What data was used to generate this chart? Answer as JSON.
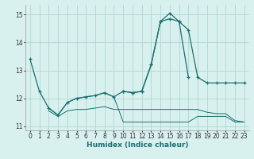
{
  "xlabel": "Humidex (Indice chaleur)",
  "background_color": "#d8f0ee",
  "grid_color": "#aed8d4",
  "line_color": "#1a7070",
  "xlim": [
    -0.5,
    23.5
  ],
  "ylim": [
    10.85,
    15.35
  ],
  "yticks": [
    11,
    12,
    13,
    14,
    15
  ],
  "xticks": [
    0,
    1,
    2,
    3,
    4,
    5,
    6,
    7,
    8,
    9,
    10,
    11,
    12,
    13,
    14,
    15,
    16,
    17,
    18,
    19,
    20,
    21,
    22,
    23
  ],
  "series_with_markers": [
    [
      0,
      13.4
    ],
    [
      1,
      12.25
    ],
    [
      2,
      11.65
    ],
    [
      3,
      11.4
    ],
    [
      4,
      11.85
    ],
    [
      5,
      12.0
    ],
    [
      6,
      12.05
    ],
    [
      7,
      12.1
    ],
    [
      8,
      12.2
    ],
    [
      9,
      12.05
    ],
    [
      10,
      12.25
    ],
    [
      11,
      12.2
    ],
    [
      12,
      12.25
    ],
    [
      13,
      13.2
    ],
    [
      14,
      14.75
    ],
    [
      15,
      14.85
    ],
    [
      16,
      14.75
    ],
    [
      17,
      14.45
    ],
    [
      18,
      12.75
    ],
    [
      19,
      12.55
    ],
    [
      20,
      12.55
    ],
    [
      21,
      12.55
    ],
    [
      22,
      12.55
    ],
    [
      23,
      12.55
    ]
  ],
  "series_peak": [
    [
      10,
      12.25
    ],
    [
      11,
      12.2
    ],
    [
      12,
      12.25
    ],
    [
      13,
      13.2
    ],
    [
      14,
      14.75
    ],
    [
      15,
      15.05
    ],
    [
      16,
      14.75
    ],
    [
      17,
      12.75
    ]
  ],
  "series_flat1": [
    [
      2,
      11.65
    ],
    [
      3,
      11.4
    ],
    [
      4,
      11.85
    ],
    [
      5,
      12.0
    ],
    [
      6,
      12.05
    ],
    [
      7,
      12.1
    ],
    [
      8,
      12.2
    ],
    [
      9,
      12.05
    ],
    [
      10,
      11.15
    ],
    [
      11,
      11.15
    ],
    [
      12,
      11.15
    ],
    [
      13,
      11.15
    ],
    [
      14,
      11.15
    ],
    [
      15,
      11.15
    ],
    [
      16,
      11.15
    ],
    [
      17,
      11.15
    ],
    [
      18,
      11.35
    ],
    [
      19,
      11.35
    ],
    [
      20,
      11.35
    ],
    [
      21,
      11.35
    ],
    [
      22,
      11.15
    ],
    [
      23,
      11.15
    ]
  ],
  "series_flat2": [
    [
      2,
      11.55
    ],
    [
      3,
      11.35
    ],
    [
      4,
      11.55
    ],
    [
      5,
      11.6
    ],
    [
      6,
      11.6
    ],
    [
      7,
      11.65
    ],
    [
      8,
      11.7
    ],
    [
      9,
      11.6
    ],
    [
      10,
      11.6
    ],
    [
      11,
      11.6
    ],
    [
      12,
      11.6
    ],
    [
      13,
      11.6
    ],
    [
      14,
      11.6
    ],
    [
      15,
      11.6
    ],
    [
      16,
      11.6
    ],
    [
      17,
      11.6
    ],
    [
      18,
      11.6
    ],
    [
      19,
      11.5
    ],
    [
      20,
      11.45
    ],
    [
      21,
      11.45
    ],
    [
      22,
      11.2
    ],
    [
      23,
      11.15
    ]
  ]
}
